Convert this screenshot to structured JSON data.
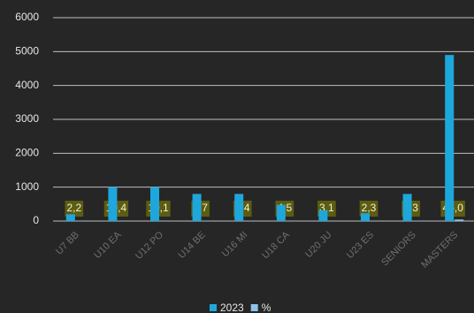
{
  "chart_data": {
    "type": "bar",
    "categories": [
      "U7 BB",
      "U10 EA",
      "U12 PO",
      "U14 BE",
      "U16 MI",
      "U18 CA",
      "U20 JU",
      "U23 ES",
      "SENIORS",
      "MASTERS"
    ],
    "series": [
      {
        "name": "2023",
        "color": "#1ea7dc",
        "values": [
          200,
          1000,
          1000,
          800,
          800,
          480,
          320,
          230,
          800,
          4900
        ]
      },
      {
        "name": "%",
        "color": "#8ec3e8",
        "values": [
          2.2,
          10.4,
          10.1,
          7.7,
          7.4,
          4.5,
          3.1,
          2.3,
          7.3,
          45.0
        ],
        "value_labels": [
          "2,2",
          "10,4",
          "10,1",
          "7,7",
          "7,4",
          "4,5",
          "3,1",
          "2,3",
          "7,3",
          "45,0"
        ]
      }
    ],
    "ylim": [
      0,
      6000
    ],
    "yticks": [
      0,
      1000,
      2000,
      3000,
      4000,
      5000,
      6000
    ],
    "grid": true,
    "legend": "bottom"
  }
}
